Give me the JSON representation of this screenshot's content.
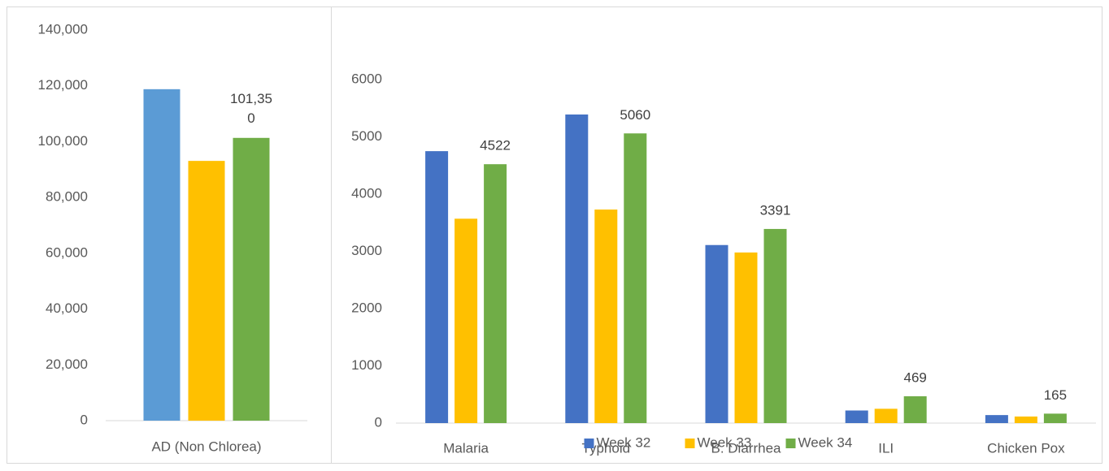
{
  "chart_data": [
    {
      "type": "bar",
      "categories": [
        "AD (Non Chlorea)"
      ],
      "series": [
        {
          "color": "#5b9bd5",
          "values": [
            118800
          ]
        },
        {
          "color": "#ffc000",
          "values": [
            93100
          ]
        },
        {
          "color": "#70ad47",
          "values": [
            101350
          ],
          "value_labels": [
            "101,350"
          ]
        }
      ],
      "ylim": [
        0,
        140000
      ],
      "yticks": [
        0,
        {
          "value": 20000,
          "label": "20,000"
        },
        {
          "value": 40000,
          "label": "40,000"
        },
        {
          "value": 60000,
          "label": "60,000"
        },
        {
          "value": 80000,
          "label": "80,000"
        },
        {
          "value": 100000,
          "label": "100,000"
        },
        {
          "value": 120000,
          "label": "120,000"
        },
        {
          "value": 140000,
          "label": "140,000"
        }
      ]
    },
    {
      "type": "bar",
      "categories": [
        "Malaria",
        "Typhoid",
        "B. Diarrhea",
        "ILI",
        "Chicken Pox"
      ],
      "series": [
        {
          "name": "Week 32",
          "color": "#4472c4",
          "values": [
            4750,
            5390,
            3110,
            220,
            140
          ]
        },
        {
          "name": "Week 33",
          "color": "#ffc000",
          "values": [
            3570,
            3730,
            2980,
            250,
            115
          ]
        },
        {
          "name": "Week 34",
          "color": "#70ad47",
          "values": [
            4522,
            5060,
            3391,
            469,
            165
          ]
        }
      ],
      "ylim": [
        0,
        6000
      ],
      "yticks": [
        0,
        1000,
        2000,
        3000,
        4000,
        5000,
        6000
      ],
      "legend": "bottom"
    }
  ]
}
